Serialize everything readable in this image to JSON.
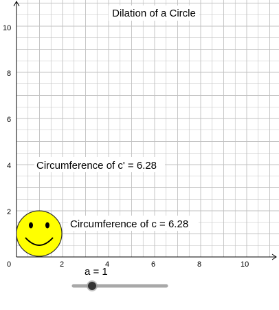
{
  "title": "Dilation of a Circle",
  "axes": {
    "x_ticks": [
      "2",
      "4",
      "6",
      "8",
      "10"
    ],
    "y_ticks": [
      "2",
      "4",
      "6",
      "8",
      "10"
    ],
    "origin_label": "0"
  },
  "labels": {
    "circumference_c_prime": "Circumference of c' = 6.28",
    "circumference_c": "Circumference of c = 6.28"
  },
  "slider": {
    "label": "a = 1",
    "value": 1
  },
  "shape": {
    "icon": "smiley-face",
    "fill_color": "#FFFF00"
  },
  "colors": {
    "grid": "#c0c0c0",
    "axis": "#000000"
  }
}
